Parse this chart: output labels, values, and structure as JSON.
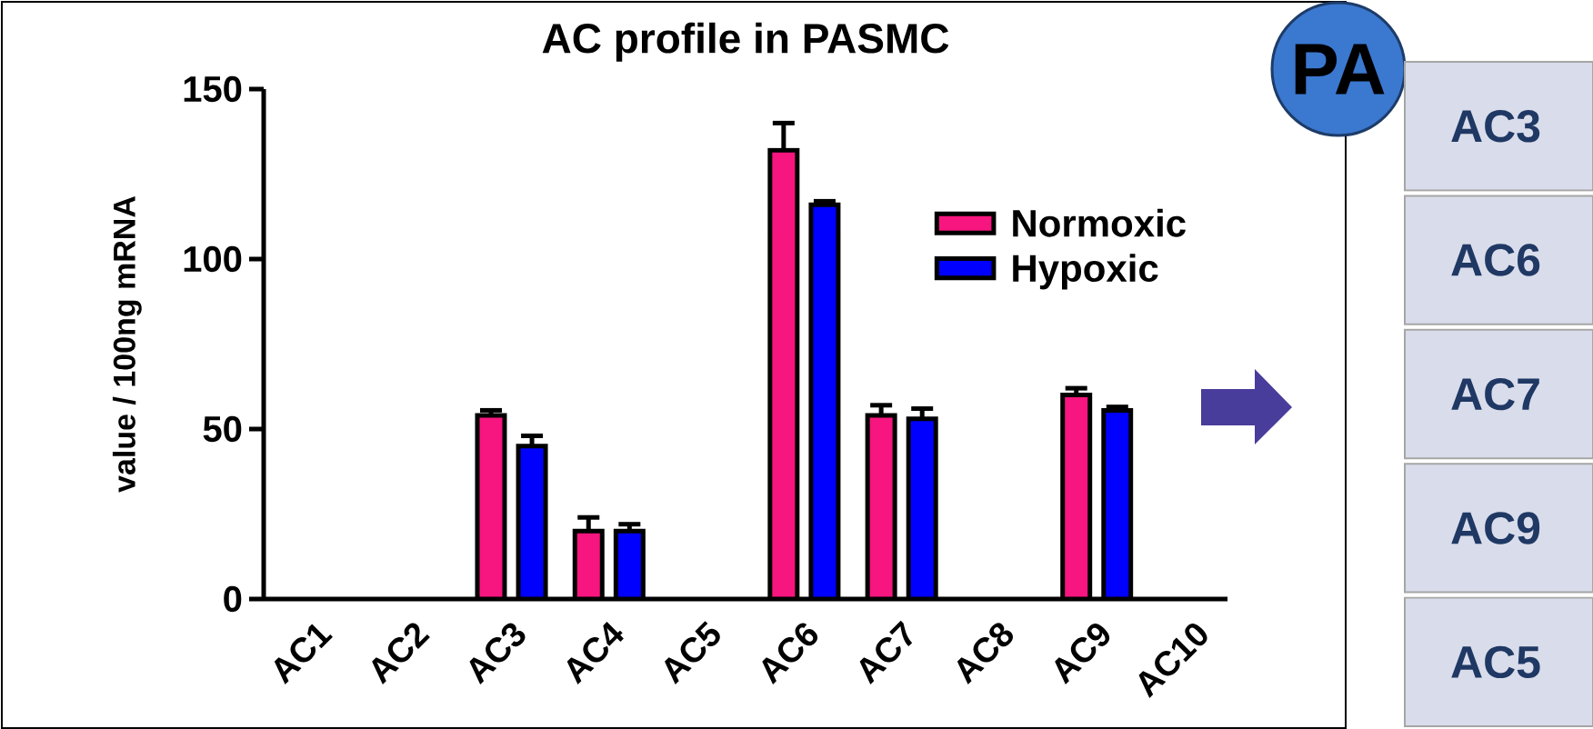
{
  "chart_data": {
    "type": "bar",
    "title": "AC profile in PASMC",
    "ylabel": "value / 100ng mRNA",
    "categories": [
      "AC1",
      "AC2",
      "AC3",
      "AC4",
      "AC5",
      "AC6",
      "AC7",
      "AC8",
      "AC9",
      "AC10"
    ],
    "series": [
      {
        "name": "Normoxic",
        "color": "#f7157f",
        "values": [
          null,
          null,
          54,
          20,
          null,
          132,
          54,
          null,
          60,
          null
        ],
        "errors": [
          null,
          null,
          1.5,
          4,
          null,
          8,
          3,
          null,
          2,
          null
        ]
      },
      {
        "name": "Hypoxic",
        "color": "#0000ff",
        "values": [
          null,
          null,
          45,
          20,
          null,
          116,
          53,
          null,
          55.5,
          null
        ],
        "errors": [
          null,
          null,
          3,
          2,
          null,
          1,
          3,
          null,
          1,
          null
        ]
      }
    ],
    "ylim": [
      0,
      150
    ],
    "yticks": [
      0,
      50,
      100,
      150
    ],
    "legend": "top right",
    "annotations": [
      "PA",
      "AC3",
      "AC6",
      "AC7",
      "AC9",
      "AC5"
    ]
  }
}
